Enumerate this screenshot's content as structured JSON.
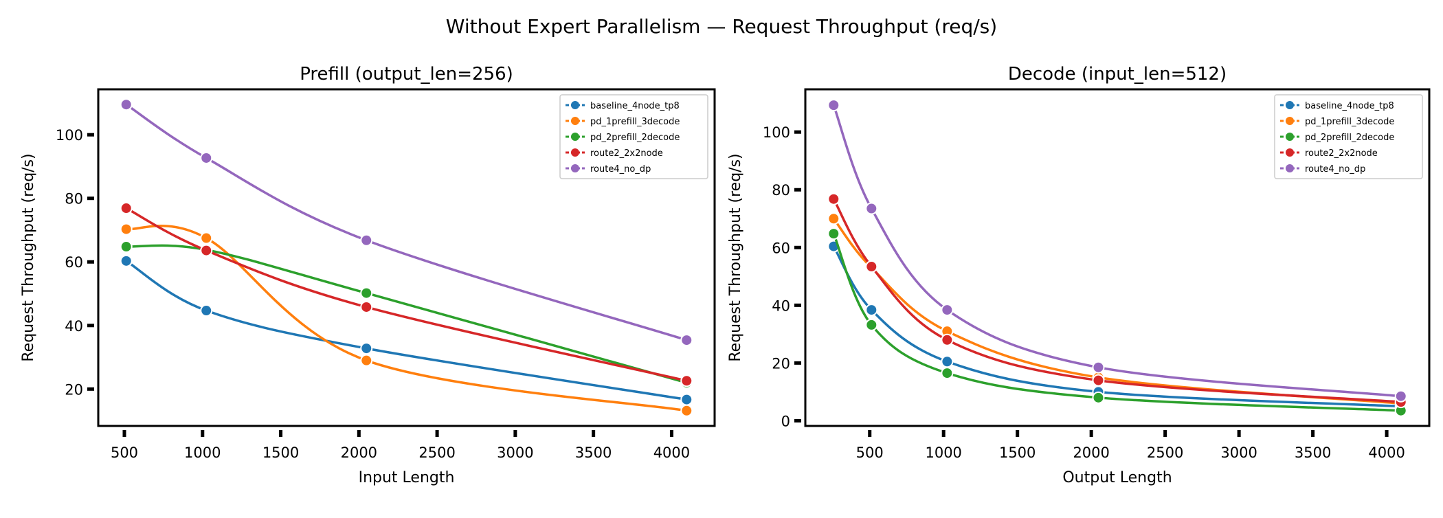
{
  "suptitle": "Without Expert Parallelism — Request Throughput (req/s)",
  "colors": {
    "baseline_4node_tp8": "#1f77b4",
    "pd_1prefill_3decode": "#ff7f0e",
    "pd_2prefill_2decode": "#2ca02c",
    "route2_2x2node": "#d62728",
    "route4_no_dp": "#9467bd"
  },
  "chart_data": [
    {
      "type": "line",
      "title": "Prefill (output_len=256)",
      "xlabel": "Input Length",
      "ylabel": "Request Throughput (req/s)",
      "xlim": [
        333,
        4275
      ],
      "ylim": [
        8.4,
        114.3
      ],
      "xticks": [
        500,
        1000,
        1500,
        2000,
        2500,
        3000,
        3500,
        4000
      ],
      "yticks": [
        20,
        40,
        60,
        80,
        100
      ],
      "grid": false,
      "legend": "top-right",
      "x": [
        512,
        1024,
        2048,
        4096
      ],
      "series": [
        {
          "name": "baseline_4node_tp8",
          "values": [
            60.3,
            44.7,
            32.8,
            16.7
          ]
        },
        {
          "name": "pd_1prefill_3decode",
          "values": [
            70.3,
            67.5,
            29.0,
            13.2
          ]
        },
        {
          "name": "pd_2prefill_2decode",
          "values": [
            64.8,
            63.8,
            50.2,
            22.0
          ]
        },
        {
          "name": "route2_2x2node",
          "values": [
            76.9,
            63.6,
            45.8,
            22.6
          ]
        },
        {
          "name": "route4_no_dp",
          "values": [
            109.5,
            92.7,
            66.8,
            35.4
          ]
        }
      ]
    },
    {
      "type": "line",
      "title": "Decode (input_len=512)",
      "xlabel": "Output Length",
      "ylabel": "Request Throughput (req/s)",
      "xlim": [
        64,
        4288
      ],
      "ylim": [
        -1.8,
        114.8
      ],
      "xticks": [
        500,
        1000,
        1500,
        2000,
        2500,
        3000,
        3500,
        4000
      ],
      "yticks": [
        0,
        20,
        40,
        60,
        80,
        100
      ],
      "grid": false,
      "legend": "top-right",
      "x": [
        256,
        512,
        1024,
        2048,
        4096
      ],
      "series": [
        {
          "name": "baseline_4node_tp8",
          "values": [
            60.4,
            38.4,
            20.5,
            10.0,
            5.0
          ]
        },
        {
          "name": "pd_1prefill_3decode",
          "values": [
            70.0,
            53.0,
            31.0,
            15.0,
            6.0
          ]
        },
        {
          "name": "pd_2prefill_2decode",
          "values": [
            64.8,
            33.2,
            16.5,
            8.0,
            3.5
          ]
        },
        {
          "name": "route2_2x2node",
          "values": [
            76.8,
            53.4,
            28.0,
            14.0,
            6.5
          ]
        },
        {
          "name": "route4_no_dp",
          "values": [
            109.3,
            73.5,
            38.4,
            18.5,
            8.5
          ]
        }
      ]
    }
  ]
}
